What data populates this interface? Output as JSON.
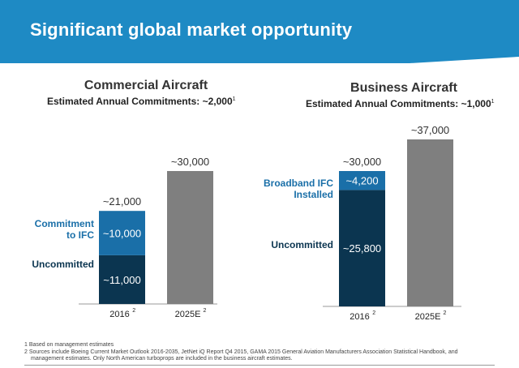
{
  "header": {
    "title": "Significant global market opportunity"
  },
  "charts": [
    {
      "title": "Commercial Aircraft",
      "subtitle": "Estimated Annual Commitments:  ~2,000",
      "subtitle_sup": "1"
    },
    {
      "title": "Business Aircraft",
      "subtitle": "Estimated Annual Commitments:  ~1,000",
      "subtitle_sup": "1"
    }
  ],
  "chart_data": [
    {
      "type": "bar",
      "stacked": true,
      "categories": [
        "2016",
        "2025E"
      ],
      "category_sups": [
        "2",
        "2"
      ],
      "series": [
        {
          "name": "Uncommitted",
          "values": [
            11000,
            0
          ],
          "labels": [
            "~11,000",
            ""
          ],
          "color": "#0b3550"
        },
        {
          "name": "Commitment to IFC",
          "values": [
            10000,
            0
          ],
          "labels": [
            "~10,000",
            ""
          ],
          "color": "#1a6fa8"
        },
        {
          "name": "",
          "values": [
            0,
            30000
          ],
          "labels": [
            "",
            ""
          ],
          "color": "#7f7f7f"
        }
      ],
      "totals": [
        "~21,000",
        "~30,000"
      ],
      "legend": [
        {
          "lines": [
            "Commitment",
            "to IFC"
          ],
          "color": "#1a6fa8"
        },
        {
          "lines": [
            "Uncommitted"
          ],
          "color": "#0b3550"
        }
      ]
    },
    {
      "type": "bar",
      "stacked": true,
      "categories": [
        "2016",
        "2025E"
      ],
      "category_sups": [
        "2",
        "2"
      ],
      "series": [
        {
          "name": "Uncommitted",
          "values": [
            25800,
            0
          ],
          "labels": [
            "~25,800",
            ""
          ],
          "color": "#0b3550"
        },
        {
          "name": "Broadband IFC Installed",
          "values": [
            4200,
            0
          ],
          "labels": [
            "~4,200",
            ""
          ],
          "color": "#1a6fa8"
        },
        {
          "name": "",
          "values": [
            0,
            37000
          ],
          "labels": [
            "",
            ""
          ],
          "color": "#7f7f7f"
        }
      ],
      "totals": [
        "~30,000",
        "~37,000"
      ],
      "legend": [
        {
          "lines": [
            "Broadband IFC",
            "Installed"
          ],
          "color": "#1a6fa8"
        },
        {
          "lines": [
            "Uncommitted"
          ],
          "color": "#0b3550"
        }
      ]
    }
  ],
  "footnotes": {
    "line1": "1 Based on management estimates",
    "line2": "2 Sources include Boeing Current Market Outlook 2016-2035, JetNet iQ Report Q4 2015, GAMA 2015 General Aviation Manufacturers Association Statistical Handbook, and",
    "line3": "   management estimates. Only North American turboprops are included in the business aircraft estimates."
  }
}
